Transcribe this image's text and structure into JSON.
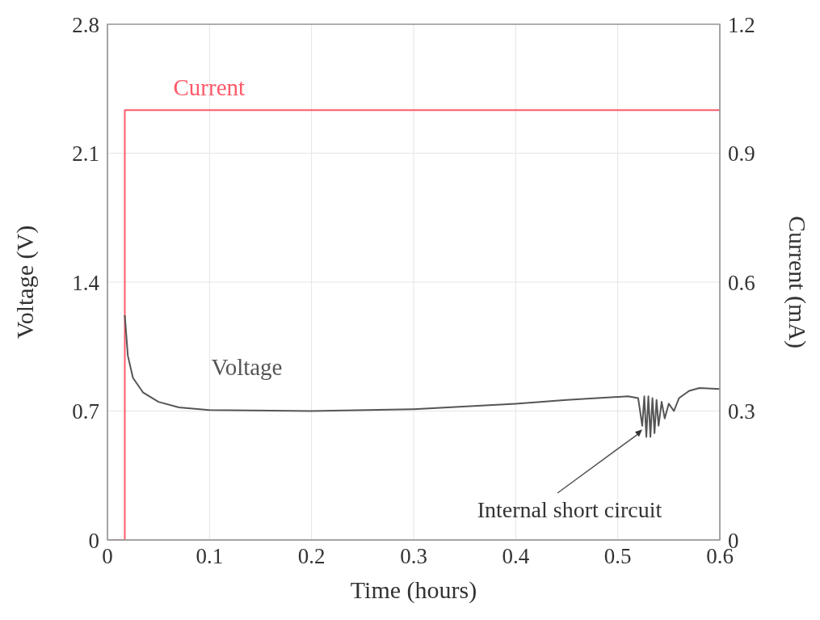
{
  "chart_data": {
    "type": "line",
    "xlabel": "Time (hours)",
    "ylabel": "Voltage (V)",
    "y2label": "Current (mA)",
    "xlim": [
      0,
      0.6
    ],
    "xticks": [
      0,
      0.1,
      0.2,
      0.3,
      0.4,
      0.5,
      0.6
    ],
    "ylim": [
      0,
      2.8
    ],
    "yticks": [
      0,
      0.7,
      1.4,
      2.1,
      2.8
    ],
    "y2lim": [
      0,
      1.2
    ],
    "y2ticks": [
      0,
      0.3,
      0.6,
      0.9,
      1.2
    ],
    "grid": true,
    "legend": false,
    "marker": "none",
    "line_style": "solid",
    "series": [
      {
        "name": "Current",
        "color": "#ff5a6a",
        "axis": "y2",
        "x": [
          0,
          0.017,
          0.017,
          0.6
        ],
        "values": [
          0,
          0,
          1,
          1
        ]
      },
      {
        "name": "Voltage",
        "color": "#555555",
        "axis": "y",
        "x": [
          0.017,
          0.02,
          0.025,
          0.035,
          0.05,
          0.07,
          0.1,
          0.2,
          0.3,
          0.4,
          0.45,
          0.51,
          0.52,
          0.524,
          0.526,
          0.528,
          0.53,
          0.532,
          0.534,
          0.536,
          0.538,
          0.54,
          0.543,
          0.546,
          0.55,
          0.555,
          0.56,
          0.57,
          0.58,
          0.6
        ],
        "values": [
          1.22,
          1.0,
          0.88,
          0.8,
          0.75,
          0.72,
          0.705,
          0.7,
          0.71,
          0.74,
          0.76,
          0.78,
          0.77,
          0.62,
          0.78,
          0.56,
          0.78,
          0.56,
          0.77,
          0.58,
          0.76,
          0.62,
          0.75,
          0.66,
          0.74,
          0.7,
          0.77,
          0.81,
          0.825,
          0.82
        ]
      }
    ],
    "annotations": [
      {
        "text": "Internal short circuit",
        "x": 0.524,
        "y": 0.6
      }
    ]
  }
}
